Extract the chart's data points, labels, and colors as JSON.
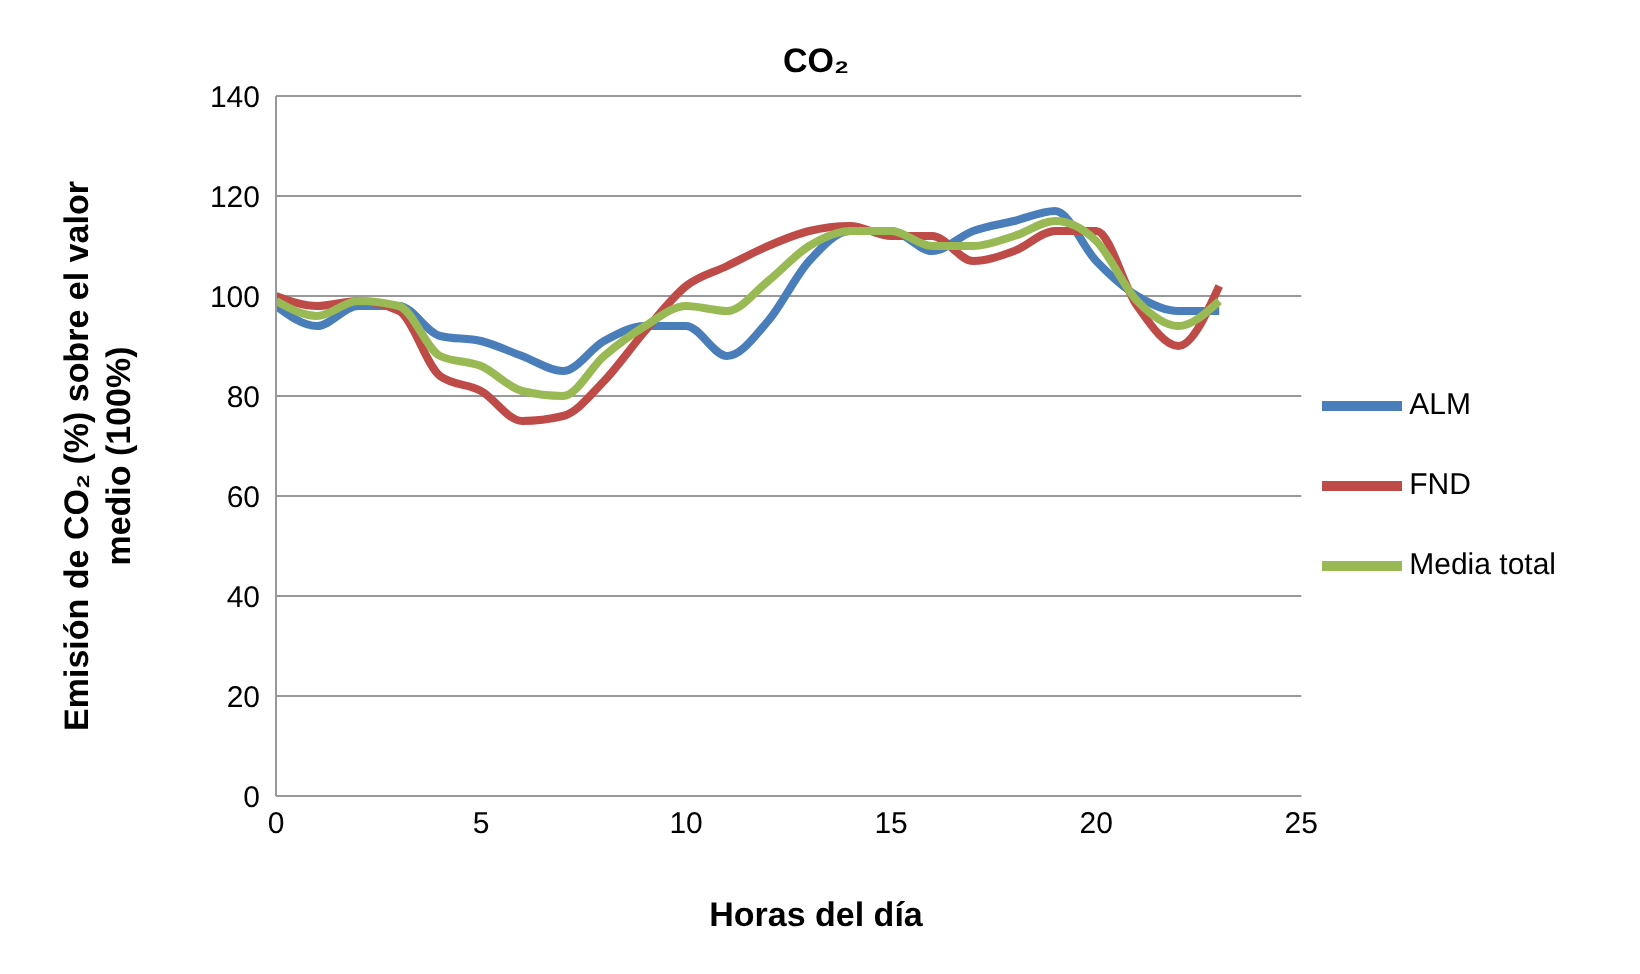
{
  "chart_data": {
    "type": "line",
    "title": "CO₂",
    "xlabel": "Horas del día",
    "ylabel": "Emisión de CO₂ (%) sobre el valor medio (100%)",
    "x": [
      0,
      1,
      2,
      3,
      4,
      5,
      6,
      7,
      8,
      9,
      10,
      11,
      12,
      13,
      14,
      15,
      16,
      17,
      18,
      19,
      20,
      21,
      22,
      23
    ],
    "series": [
      {
        "name": "ALM",
        "color": "#4a7ebb",
        "values": [
          98,
          94,
          98,
          98,
          92,
          91,
          88,
          85,
          91,
          94,
          94,
          88,
          95,
          107,
          113,
          113,
          109,
          113,
          115,
          117,
          107,
          100,
          97,
          97
        ]
      },
      {
        "name": "FND",
        "color": "#be4b48",
        "values": [
          100,
          98,
          99,
          97,
          84,
          81,
          75,
          76,
          83,
          93,
          102,
          106,
          110,
          113,
          114,
          112,
          112,
          107,
          109,
          113,
          113,
          98,
          90,
          102
        ]
      },
      {
        "name": "Media total",
        "color": "#98b954",
        "values": [
          99,
          96,
          99,
          98,
          88,
          86,
          81,
          80,
          88,
          94,
          98,
          97,
          103,
          110,
          113,
          113,
          110,
          110,
          112,
          115,
          111,
          99,
          94,
          99
        ]
      }
    ],
    "xlim": [
      0,
      25
    ],
    "xticks": [
      0,
      5,
      10,
      15,
      20,
      25
    ],
    "ylim": [
      0,
      140
    ],
    "yticks": [
      0,
      20,
      40,
      60,
      80,
      100,
      120,
      140
    ],
    "grid": "y",
    "legend": "right",
    "marker": "none",
    "line_style": "solid"
  }
}
